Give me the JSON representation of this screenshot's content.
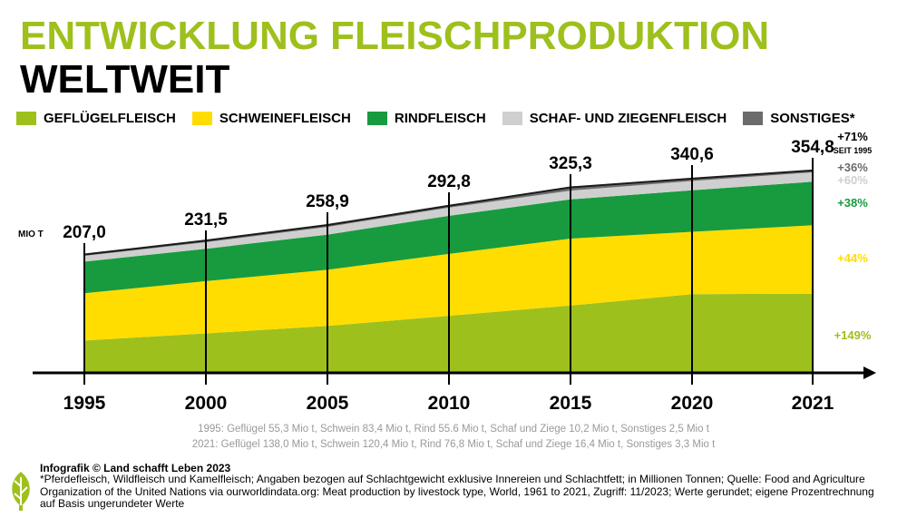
{
  "header": {
    "title_line1": "ENTWICKLUNG FLEISCHPRODUKTION",
    "title_line2": "WELTWEIT"
  },
  "legend": [
    {
      "label": "GEFLÜGELFLEISCH",
      "color": "#9ec01c"
    },
    {
      "label": "SCHWEINEFLEISCH",
      "color": "#ffdd00"
    },
    {
      "label": "RINDFLEISCH",
      "color": "#179b3e"
    },
    {
      "label": "SCHAF- UND ZIEGENFLEISCH",
      "color": "#cfcfcf"
    },
    {
      "label": "SONSTIGES*",
      "color": "#6b6b6b"
    }
  ],
  "chart_data": {
    "type": "area",
    "stacked": true,
    "unit_label": "MIO T",
    "x": [
      "1995",
      "2000",
      "2005",
      "2010",
      "2015",
      "2020",
      "2021"
    ],
    "series": [
      {
        "name": "GEFLÜGELFLEISCH",
        "color": "#9ec01c",
        "values": [
          55.3,
          68,
          81,
          99,
          117,
          137,
          138.0
        ]
      },
      {
        "name": "SCHWEINEFLEISCH",
        "color": "#ffdd00",
        "values": [
          83.4,
          92,
          99,
          109,
          118,
          110,
          120.4
        ]
      },
      {
        "name": "RINDFLEISCH",
        "color": "#179b3e",
        "values": [
          55.6,
          57,
          62,
          67,
          69,
          73,
          76.8
        ]
      },
      {
        "name": "SCHAF- UND ZIEGENFLEISCH",
        "color": "#cfcfcf",
        "values": [
          10.2,
          11.5,
          13.5,
          14.5,
          15.5,
          16.5,
          16.4
        ]
      },
      {
        "name": "SONSTIGES*",
        "color": "#6b6b6b",
        "values": [
          2.5,
          3,
          3.4,
          3.3,
          5.8,
          4.1,
          3.3
        ]
      }
    ],
    "totals": [
      "207,0",
      "231,5",
      "258,9",
      "292,8",
      "325,3",
      "340,6",
      "354,8"
    ],
    "ylim": [
      0,
      360
    ],
    "annotations": {
      "total_change": "+71%",
      "total_change_note": "SEIT 1995",
      "series_changes": [
        "+149%",
        "+44%",
        "+38%",
        "+60%",
        "+36%"
      ]
    }
  },
  "notes": {
    "line_1995": "1995: Geflügel 55,3 Mio t, Schwein 83,4 Mio t, Rind 55.6 Mio t, Schaf und Ziege 10,2 Mio t, Sonstiges 2,5 Mio t",
    "line_2021": "2021: Geflügel 138,0 Mio t, Schwein 120,4 Mio t, Rind 76,8 Mio t, Schaf und Ziege 16,4 Mio t, Sonstiges 3,3 Mio t"
  },
  "footer": {
    "credit": "Infografik © Land schafft Leben 2023",
    "footnote": "*Pferdefleisch, Wildfleisch und Kamelfleisch; Angaben bezogen auf Schlachtgewicht exklusive Innereien und Schlachtfett; in Millionen Tonnen; Quelle: Food and Agriculture Organization of the United Nations via ourworldindata.org: Meat production by livestock type, World, 1961 to 2021, Zugriff: 11/2023; Werte gerundet; eigene Prozentrechnung auf Basis ungerundeter Werte"
  }
}
